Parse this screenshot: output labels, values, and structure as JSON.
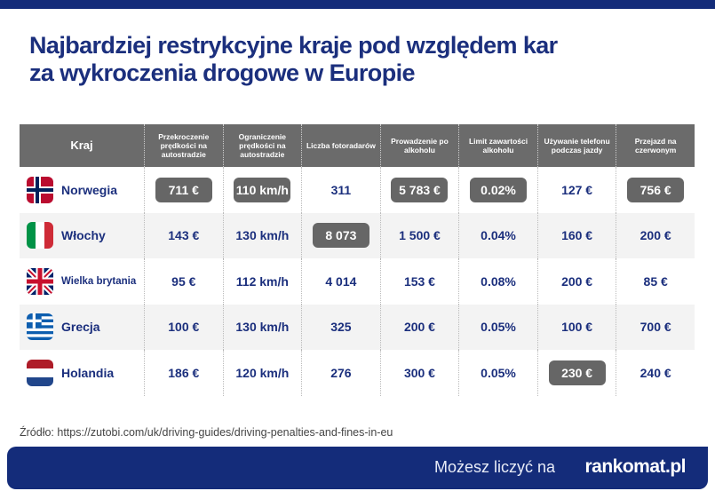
{
  "title_line1": "Najbardziej restrykcyjne kraje pod względem kar",
  "title_line2": "za wykroczenia drogowe w Europie",
  "columns": [
    "Kraj",
    "Przekroczenie prędkości na autostradzie",
    "Ograniczenie prędkości na autostradzie",
    "Liczba fotoradarów",
    "Prowadzenie po alkoholu",
    "Limit zawartości alkoholu",
    "Używanie telefonu podczas jazdy",
    "Przejazd na czerwonym"
  ],
  "rows": [
    {
      "country": "Norwegia",
      "flag": "norway-flag",
      "cells": [
        {
          "v": "711  €",
          "hl": true
        },
        {
          "v": "110 km/h",
          "hl": true
        },
        {
          "v": "311",
          "hl": false
        },
        {
          "v": "5 783 €",
          "hl": true
        },
        {
          "v": "0.02%",
          "hl": true
        },
        {
          "v": "127 €",
          "hl": false
        },
        {
          "v": "756 €",
          "hl": true
        }
      ]
    },
    {
      "country": "Włochy",
      "flag": "italy-flag",
      "cells": [
        {
          "v": "143  €",
          "hl": false
        },
        {
          "v": "130 km/h",
          "hl": false
        },
        {
          "v": "8 073",
          "hl": true
        },
        {
          "v": "1 500 €",
          "hl": false
        },
        {
          "v": "0.04%",
          "hl": false
        },
        {
          "v": "160 €",
          "hl": false
        },
        {
          "v": "200 €",
          "hl": false
        }
      ]
    },
    {
      "country": "Wielka brytania",
      "flag": "uk-flag",
      "cells": [
        {
          "v": "95  €",
          "hl": false
        },
        {
          "v": "112 km/h",
          "hl": false
        },
        {
          "v": "4 014",
          "hl": false
        },
        {
          "v": "153 €",
          "hl": false
        },
        {
          "v": "0.08%",
          "hl": false
        },
        {
          "v": "200 €",
          "hl": false
        },
        {
          "v": "85 €",
          "hl": false
        }
      ]
    },
    {
      "country": "Grecja",
      "flag": "greece-flag",
      "cells": [
        {
          "v": "100  €",
          "hl": false
        },
        {
          "v": "130 km/h",
          "hl": false
        },
        {
          "v": "325",
          "hl": false
        },
        {
          "v": "200 €",
          "hl": false
        },
        {
          "v": "0.05%",
          "hl": false
        },
        {
          "v": "100 €",
          "hl": false
        },
        {
          "v": "700 €",
          "hl": false
        }
      ]
    },
    {
      "country": "Holandia",
      "flag": "netherlands-flag",
      "cells": [
        {
          "v": "186  €",
          "hl": false
        },
        {
          "v": "120 km/h",
          "hl": false
        },
        {
          "v": "276",
          "hl": false
        },
        {
          "v": "300 €",
          "hl": false
        },
        {
          "v": "0.05%",
          "hl": false
        },
        {
          "v": "230 €",
          "hl": true
        },
        {
          "v": "240 €",
          "hl": false
        }
      ]
    }
  ],
  "source": "Źródło: https://zutobi.com/uk/driving-guides/driving-penalties-and-fines-in-eu",
  "footer": {
    "slogan": "Możesz liczyć na",
    "logo": "rankomat.pl"
  },
  "colors": {
    "navy": "#142c7a",
    "highlight": "#666666",
    "header": "#6b6b6b"
  }
}
